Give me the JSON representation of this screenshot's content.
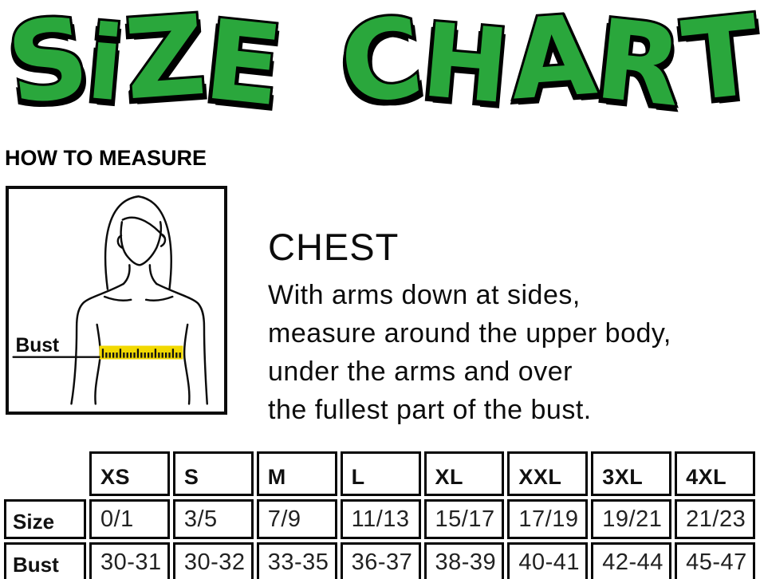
{
  "title": {
    "text": "SiZE CHART"
  },
  "colors": {
    "title_green": "#2AA73C",
    "outline_black": "#000000",
    "tape_yellow": "#F2D900",
    "ink": "#111111"
  },
  "how_to_measure": {
    "heading": "HOW TO MEASURE"
  },
  "figure": {
    "bust_label": "Bust"
  },
  "instructions": {
    "heading": "CHEST",
    "lines": [
      "With arms down at sides,",
      "measure around the upper body,",
      "under the arms and over",
      "the fullest part of the bust."
    ]
  },
  "size_table": {
    "columns": [
      "XS",
      "S",
      "M",
      "L",
      "XL",
      "XXL",
      "3XL",
      "4XL"
    ],
    "rows": [
      {
        "label": "Size",
        "values": [
          "0/1",
          "3/5",
          "7/9",
          "11/13",
          "15/17",
          "17/19",
          "19/21",
          "21/23"
        ]
      },
      {
        "label": "Bust",
        "values": [
          "30-31",
          "30-32",
          "33-35",
          "36-37",
          "38-39",
          "40-41",
          "42-44",
          "45-47"
        ]
      }
    ]
  }
}
